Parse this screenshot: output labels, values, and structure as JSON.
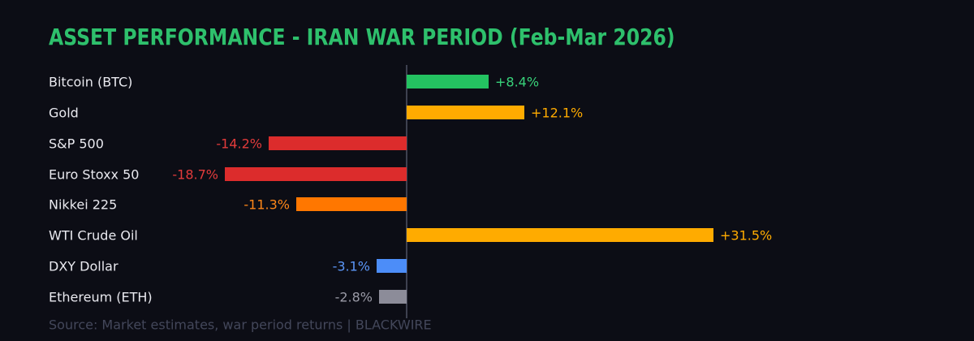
{
  "title": "ASSET PERFORMANCE - IRAN WAR PERIOD (Feb-Mar 2026)",
  "source_note": "Source: Market estimates, war period returns | BLACKWIRE",
  "colors": {
    "background": "#0C0D15",
    "title": "#2EC06C",
    "axis_line": "#3E4150",
    "asset_label": "#E9E9EF",
    "source_note": "#43475A"
  },
  "chart_data": {
    "type": "bar",
    "orientation": "horizontal",
    "unit": "percent",
    "title": "ASSET PERFORMANCE - IRAN WAR PERIOD (Feb-Mar 2026)",
    "xlabel": "",
    "ylabel": "",
    "xlim": [
      -36.7,
      58.2
    ],
    "grid": false,
    "legend": "none",
    "zero_baseline": true,
    "categories": [
      "Bitcoin (BTC)",
      "Gold",
      "S&P 500",
      "Euro Stoxx 50",
      "Nikkei 225",
      "WTI Crude Oil",
      "DXY Dollar",
      "Ethereum (ETH)"
    ],
    "values": [
      8.4,
      12.1,
      -14.2,
      -18.7,
      -11.3,
      31.5,
      -3.1,
      -2.8
    ],
    "series": [
      {
        "name": "Bitcoin (BTC)",
        "value": 8.4,
        "value_label": "+8.4%",
        "bar_color": "#24C261",
        "value_color": "#38D27A"
      },
      {
        "name": "Gold",
        "value": 12.1,
        "value_label": "+12.1%",
        "bar_color": "#FFAB00",
        "value_color": "#FFAB00"
      },
      {
        "name": "S&P 500",
        "value": -14.2,
        "value_label": "-14.2%",
        "bar_color": "#DC2C2C",
        "value_color": "#E23B3B"
      },
      {
        "name": "Euro Stoxx 50",
        "value": -18.7,
        "value_label": "-18.7%",
        "bar_color": "#DC2C2C",
        "value_color": "#E23B3B"
      },
      {
        "name": "Nikkei 225",
        "value": -11.3,
        "value_label": "-11.3%",
        "bar_color": "#FF7700",
        "value_color": "#FF8718"
      },
      {
        "name": "WTI Crude Oil",
        "value": 31.5,
        "value_label": "+31.5%",
        "bar_color": "#FFAB00",
        "value_color": "#FFAB00"
      },
      {
        "name": "DXY Dollar",
        "value": -3.1,
        "value_label": "-3.1%",
        "bar_color": "#4C8DF8",
        "value_color": "#5B96F7"
      },
      {
        "name": "Ethereum (ETH)",
        "value": -2.8,
        "value_label": "-2.8%",
        "bar_color": "#8C8C99",
        "value_color": "#9A9AA6"
      }
    ]
  }
}
